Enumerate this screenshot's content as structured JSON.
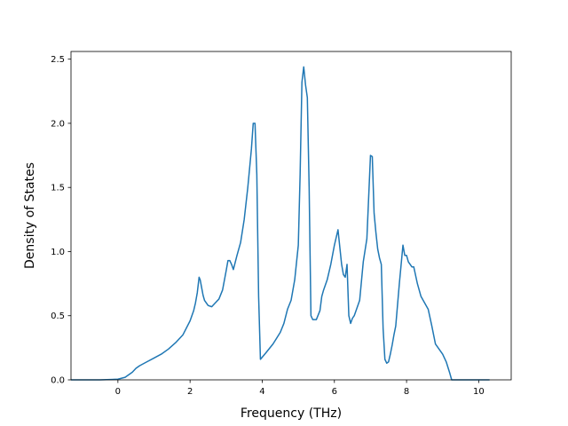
{
  "chart_data": {
    "type": "line",
    "title": "",
    "xlabel": "Frequency (THz)",
    "ylabel": "Density of States",
    "xlim": [
      -1.3,
      10.9
    ],
    "ylim": [
      0.0,
      2.56
    ],
    "xticks": [
      0,
      2,
      4,
      6,
      8,
      10
    ],
    "xtick_labels": [
      "0",
      "2",
      "4",
      "6",
      "8",
      "10"
    ],
    "yticks": [
      0.0,
      0.5,
      1.0,
      1.5,
      2.0,
      2.5
    ],
    "ytick_labels": [
      "0.0",
      "0.5",
      "1.0",
      "1.5",
      "2.0",
      "2.5"
    ],
    "grid": false,
    "legend": "none",
    "series": [
      {
        "color": "#1f77b4",
        "x": [
          -1.3,
          -0.5,
          0.0,
          0.2,
          0.3,
          0.4,
          0.5,
          0.6,
          0.8,
          1.0,
          1.2,
          1.4,
          1.6,
          1.8,
          2.0,
          2.1,
          2.15,
          2.2,
          2.25,
          2.28,
          2.32,
          2.36,
          2.4,
          2.5,
          2.6,
          2.7,
          2.8,
          2.9,
          3.0,
          3.05,
          3.1,
          3.15,
          3.2,
          3.3,
          3.4,
          3.5,
          3.6,
          3.65,
          3.7,
          3.75,
          3.8,
          3.85,
          3.9,
          3.95,
          4.1,
          4.3,
          4.5,
          4.6,
          4.7,
          4.8,
          4.9,
          5.0,
          5.05,
          5.1,
          5.15,
          5.2,
          5.25,
          5.3,
          5.35,
          5.4,
          5.5,
          5.6,
          5.65,
          5.7,
          5.8,
          5.9,
          6.0,
          6.1,
          6.2,
          6.25,
          6.3,
          6.35,
          6.4,
          6.45,
          6.5,
          6.55,
          6.6,
          6.7,
          6.8,
          6.9,
          7.0,
          7.05,
          7.1,
          7.15,
          7.2,
          7.25,
          7.3,
          7.35,
          7.4,
          7.45,
          7.5,
          7.55,
          7.6,
          7.65,
          7.7,
          7.8,
          7.9,
          7.95,
          8.0,
          8.05,
          8.1,
          8.15,
          8.2,
          8.3,
          8.4,
          8.5,
          8.6,
          8.7,
          8.8,
          9.0,
          9.1,
          9.2,
          9.25,
          9.3,
          9.35,
          10.3
        ],
        "y": [
          0.0,
          0.0,
          0.005,
          0.02,
          0.04,
          0.06,
          0.09,
          0.11,
          0.14,
          0.17,
          0.2,
          0.24,
          0.29,
          0.35,
          0.46,
          0.54,
          0.6,
          0.68,
          0.8,
          0.78,
          0.72,
          0.66,
          0.62,
          0.58,
          0.57,
          0.6,
          0.63,
          0.7,
          0.85,
          0.93,
          0.93,
          0.9,
          0.86,
          0.97,
          1.07,
          1.25,
          1.5,
          1.65,
          1.8,
          2.0,
          2.0,
          1.6,
          0.65,
          0.16,
          0.21,
          0.28,
          0.37,
          0.44,
          0.55,
          0.62,
          0.78,
          1.05,
          1.6,
          2.32,
          2.44,
          2.3,
          2.2,
          1.5,
          0.5,
          0.47,
          0.47,
          0.54,
          0.65,
          0.7,
          0.78,
          0.9,
          1.05,
          1.17,
          0.9,
          0.82,
          0.8,
          0.9,
          0.5,
          0.44,
          0.48,
          0.5,
          0.54,
          0.62,
          0.92,
          1.1,
          1.75,
          1.74,
          1.3,
          1.15,
          1.02,
          0.95,
          0.9,
          0.4,
          0.16,
          0.13,
          0.14,
          0.2,
          0.27,
          0.35,
          0.42,
          0.75,
          1.05,
          0.97,
          0.97,
          0.92,
          0.9,
          0.88,
          0.88,
          0.75,
          0.65,
          0.6,
          0.55,
          0.42,
          0.28,
          0.2,
          0.14,
          0.05,
          0.0,
          0.0,
          0.0,
          0.0
        ]
      }
    ]
  }
}
